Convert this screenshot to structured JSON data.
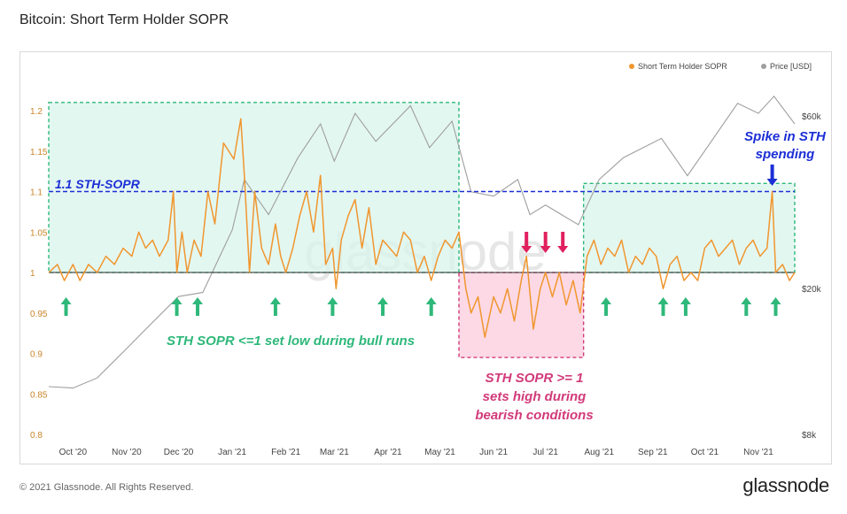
{
  "title": "Bitcoin: Short Term Holder SOPR",
  "footer": "© 2021 Glassnode. All Rights Reserved.",
  "brand": "glassnode",
  "watermark": "glassnode",
  "colors": {
    "sopr": "#f0962e",
    "price": "#9e9e9e",
    "green_zone": "#d9f4ec",
    "green_border": "#2eb87a",
    "pink_zone": "#fbd0df",
    "pink_border": "#d23a7a",
    "blue_line": "#1c2fd6",
    "green_arrow": "#2eb87a",
    "pink_arrow": "#e0205f",
    "blue_arrow": "#1c2fd6",
    "axis_text": "#c9852a",
    "baseline": "#555555"
  },
  "chart_data": {
    "type": "line",
    "legend": [
      {
        "name": "Short Term Holder SOPR",
        "color": "#f0962e"
      },
      {
        "name": "Price [USD]",
        "color": "#9e9e9e"
      }
    ],
    "legend_position": "top-right",
    "x_tick_labels": [
      "Oct '20",
      "Nov '20",
      "Dec '20",
      "Jan '21",
      "Feb '21",
      "Mar '21",
      "Apr '21",
      "May '21",
      "Jun '21",
      "Jul '21",
      "Aug '21",
      "Sep '21",
      "Oct '21",
      "Nov '21"
    ],
    "y_left_ticks": [
      "1.2",
      "1.15",
      "1.1",
      "1.05",
      "1",
      "0.95",
      "0.9",
      "0.85",
      "0.8"
    ],
    "y_left_range": [
      0.8,
      1.2
    ],
    "y_right_ticks": [
      "$60k",
      "$20k",
      "$8k"
    ],
    "y_right_scale": "log",
    "x_range": [
      "2020-09-17",
      "2021-11-22"
    ],
    "grid": false,
    "reference_line": 1.0,
    "sth_sopr_series": [
      [
        "2020-09-17",
        1.0
      ],
      [
        "2020-09-22",
        1.01
      ],
      [
        "2020-09-26",
        0.99
      ],
      [
        "2020-10-01",
        1.01
      ],
      [
        "2020-10-05",
        0.99
      ],
      [
        "2020-10-10",
        1.01
      ],
      [
        "2020-10-15",
        1.0
      ],
      [
        "2020-10-20",
        1.02
      ],
      [
        "2020-10-25",
        1.01
      ],
      [
        "2020-10-30",
        1.03
      ],
      [
        "2020-11-04",
        1.02
      ],
      [
        "2020-11-08",
        1.05
      ],
      [
        "2020-11-12",
        1.03
      ],
      [
        "2020-11-16",
        1.04
      ],
      [
        "2020-11-20",
        1.02
      ],
      [
        "2020-11-25",
        1.04
      ],
      [
        "2020-11-28",
        1.1
      ],
      [
        "2020-11-30",
        1.0
      ],
      [
        "2020-12-03",
        1.05
      ],
      [
        "2020-12-06",
        1.0
      ],
      [
        "2020-12-10",
        1.04
      ],
      [
        "2020-12-14",
        1.02
      ],
      [
        "2020-12-18",
        1.1
      ],
      [
        "2020-12-22",
        1.06
      ],
      [
        "2020-12-27",
        1.16
      ],
      [
        "2021-01-02",
        1.14
      ],
      [
        "2021-01-06",
        1.19
      ],
      [
        "2021-01-08",
        1.12
      ],
      [
        "2021-01-11",
        1.0
      ],
      [
        "2021-01-14",
        1.1
      ],
      [
        "2021-01-18",
        1.03
      ],
      [
        "2021-01-22",
        1.01
      ],
      [
        "2021-01-26",
        1.06
      ],
      [
        "2021-01-29",
        1.02
      ],
      [
        "2021-02-01",
        1.0
      ],
      [
        "2021-02-05",
        1.03
      ],
      [
        "2021-02-09",
        1.07
      ],
      [
        "2021-02-13",
        1.1
      ],
      [
        "2021-02-17",
        1.05
      ],
      [
        "2021-02-21",
        1.12
      ],
      [
        "2021-02-24",
        1.01
      ],
      [
        "2021-02-28",
        1.03
      ],
      [
        "2021-03-02",
        0.98
      ],
      [
        "2021-03-05",
        1.04
      ],
      [
        "2021-03-09",
        1.07
      ],
      [
        "2021-03-13",
        1.09
      ],
      [
        "2021-03-17",
        1.03
      ],
      [
        "2021-03-21",
        1.08
      ],
      [
        "2021-03-25",
        1.01
      ],
      [
        "2021-03-29",
        1.04
      ],
      [
        "2021-04-02",
        1.03
      ],
      [
        "2021-04-06",
        1.02
      ],
      [
        "2021-04-10",
        1.05
      ],
      [
        "2021-04-14",
        1.04
      ],
      [
        "2021-04-18",
        1.0
      ],
      [
        "2021-04-22",
        1.02
      ],
      [
        "2021-04-26",
        0.99
      ],
      [
        "2021-04-30",
        1.02
      ],
      [
        "2021-05-04",
        1.04
      ],
      [
        "2021-05-08",
        1.03
      ],
      [
        "2021-05-12",
        1.05
      ],
      [
        "2021-05-16",
        0.98
      ],
      [
        "2021-05-19",
        0.95
      ],
      [
        "2021-05-23",
        0.97
      ],
      [
        "2021-05-27",
        0.92
      ],
      [
        "2021-06-01",
        0.97
      ],
      [
        "2021-06-05",
        0.95
      ],
      [
        "2021-06-09",
        0.98
      ],
      [
        "2021-06-13",
        0.94
      ],
      [
        "2021-06-17",
        0.99
      ],
      [
        "2021-06-20",
        1.02
      ],
      [
        "2021-06-24",
        0.93
      ],
      [
        "2021-06-28",
        0.98
      ],
      [
        "2021-07-01",
        1.0
      ],
      [
        "2021-07-05",
        0.97
      ],
      [
        "2021-07-09",
        1.0
      ],
      [
        "2021-07-13",
        0.96
      ],
      [
        "2021-07-17",
        0.99
      ],
      [
        "2021-07-21",
        0.95
      ],
      [
        "2021-07-25",
        1.02
      ],
      [
        "2021-07-29",
        1.04
      ],
      [
        "2021-08-02",
        1.01
      ],
      [
        "2021-08-06",
        1.03
      ],
      [
        "2021-08-10",
        1.02
      ],
      [
        "2021-08-14",
        1.04
      ],
      [
        "2021-08-18",
        1.0
      ],
      [
        "2021-08-22",
        1.02
      ],
      [
        "2021-08-26",
        1.01
      ],
      [
        "2021-08-30",
        1.03
      ],
      [
        "2021-09-03",
        1.02
      ],
      [
        "2021-09-07",
        0.98
      ],
      [
        "2021-09-11",
        1.01
      ],
      [
        "2021-09-15",
        1.02
      ],
      [
        "2021-09-19",
        0.99
      ],
      [
        "2021-09-23",
        1.0
      ],
      [
        "2021-09-27",
        0.99
      ],
      [
        "2021-10-01",
        1.03
      ],
      [
        "2021-10-05",
        1.04
      ],
      [
        "2021-10-09",
        1.02
      ],
      [
        "2021-10-13",
        1.03
      ],
      [
        "2021-10-17",
        1.04
      ],
      [
        "2021-10-21",
        1.01
      ],
      [
        "2021-10-25",
        1.03
      ],
      [
        "2021-10-29",
        1.04
      ],
      [
        "2021-11-02",
        1.02
      ],
      [
        "2021-11-06",
        1.03
      ],
      [
        "2021-11-09",
        1.1
      ],
      [
        "2021-11-11",
        1.0
      ],
      [
        "2021-11-15",
        1.01
      ],
      [
        "2021-11-19",
        0.99
      ],
      [
        "2021-11-22",
        1.0
      ]
    ],
    "price_series": [
      [
        "2020-09-17",
        10800
      ],
      [
        "2020-10-01",
        10700
      ],
      [
        "2020-10-15",
        11400
      ],
      [
        "2020-11-01",
        13700
      ],
      [
        "2020-11-15",
        16000
      ],
      [
        "2020-12-01",
        19000
      ],
      [
        "2020-12-15",
        19500
      ],
      [
        "2021-01-01",
        29000
      ],
      [
        "2021-01-08",
        40000
      ],
      [
        "2021-01-22",
        32000
      ],
      [
        "2021-02-08",
        46000
      ],
      [
        "2021-02-21",
        57000
      ],
      [
        "2021-03-01",
        45000
      ],
      [
        "2021-03-13",
        61000
      ],
      [
        "2021-03-25",
        51000
      ],
      [
        "2021-04-14",
        64000
      ],
      [
        "2021-04-25",
        49000
      ],
      [
        "2021-05-08",
        58000
      ],
      [
        "2021-05-19",
        37000
      ],
      [
        "2021-06-01",
        36000
      ],
      [
        "2021-06-15",
        40000
      ],
      [
        "2021-06-22",
        32000
      ],
      [
        "2021-07-01",
        34000
      ],
      [
        "2021-07-20",
        30000
      ],
      [
        "2021-08-01",
        40000
      ],
      [
        "2021-08-15",
        46000
      ],
      [
        "2021-09-06",
        52000
      ],
      [
        "2021-09-21",
        41000
      ],
      [
        "2021-10-01",
        48000
      ],
      [
        "2021-10-20",
        65000
      ],
      [
        "2021-11-01",
        61000
      ],
      [
        "2021-11-10",
        68000
      ],
      [
        "2021-11-22",
        57000
      ]
    ],
    "annotations": {
      "blue_line_label": "1.1 STH-SOPR",
      "bull_label": "STH SOPR <=1 set low during bull runs",
      "bear_label": [
        "STH SOPR >= 1",
        "sets high during",
        "bearish conditions"
      ],
      "spike_label": [
        "Spike in STH",
        "spending"
      ],
      "blue_line_value": 1.1,
      "green_zones": [
        {
          "from": "2020-09-17",
          "to": "2021-05-12",
          "low": 1.0,
          "high": 1.21
        },
        {
          "from": "2021-07-23",
          "to": "2021-11-22",
          "low": 1.0,
          "high": 1.11
        }
      ],
      "pink_zone": {
        "from": "2021-05-12",
        "to": "2021-07-23",
        "low": 0.895,
        "high": 1.0
      },
      "green_arrows": [
        "2020-09-27",
        "2020-11-30",
        "2020-12-12",
        "2021-01-26",
        "2021-02-28",
        "2021-03-29",
        "2021-04-26",
        "2021-08-05",
        "2021-09-07",
        "2021-09-20",
        "2021-10-25",
        "2021-11-11"
      ],
      "pink_arrows": [
        "2021-06-20",
        "2021-07-01",
        "2021-07-11"
      ],
      "blue_arrow": "2021-11-09"
    }
  }
}
